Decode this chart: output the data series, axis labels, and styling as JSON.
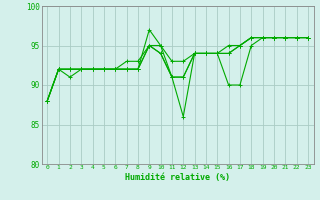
{
  "title": "",
  "xlabel": "Humidité relative (%)",
  "ylabel": "",
  "bg_color": "#d4f0eb",
  "grid_color": "#aaccc4",
  "line_color": "#00aa00",
  "spine_color": "#888888",
  "xlim": [
    -0.5,
    23.5
  ],
  "ylim": [
    80,
    100
  ],
  "yticks": [
    80,
    85,
    90,
    95,
    100
  ],
  "xtick_labels": [
    "0",
    "1",
    "2",
    "3",
    "4",
    "5",
    "6",
    "7",
    "8",
    "9",
    "10",
    "11",
    "12",
    "13",
    "14",
    "15",
    "16",
    "17",
    "18",
    "19",
    "20",
    "21",
    "22",
    "23"
  ],
  "series": [
    [
      88,
      92,
      91,
      92,
      92,
      92,
      92,
      92,
      92,
      95,
      94,
      91,
      91,
      94,
      94,
      94,
      95,
      95,
      96,
      96,
      96,
      96,
      96,
      96
    ],
    [
      88,
      92,
      92,
      92,
      92,
      92,
      92,
      92,
      92,
      97,
      95,
      91,
      86,
      94,
      94,
      94,
      90,
      90,
      95,
      96,
      96,
      96,
      96,
      96
    ],
    [
      88,
      92,
      92,
      92,
      92,
      92,
      92,
      93,
      93,
      95,
      95,
      93,
      93,
      94,
      94,
      94,
      94,
      95,
      96,
      96,
      96,
      96,
      96,
      96
    ],
    [
      88,
      92,
      92,
      92,
      92,
      92,
      92,
      92,
      92,
      95,
      94,
      91,
      91,
      94,
      94,
      94,
      94,
      95,
      96,
      96,
      96,
      96,
      96,
      96
    ]
  ],
  "xlabel_fontsize": 6,
  "xtick_fontsize": 4.5,
  "ytick_fontsize": 5.5,
  "linewidth": 0.8,
  "marker": "+",
  "markersize": 2.5,
  "markeredgewidth": 0.7
}
